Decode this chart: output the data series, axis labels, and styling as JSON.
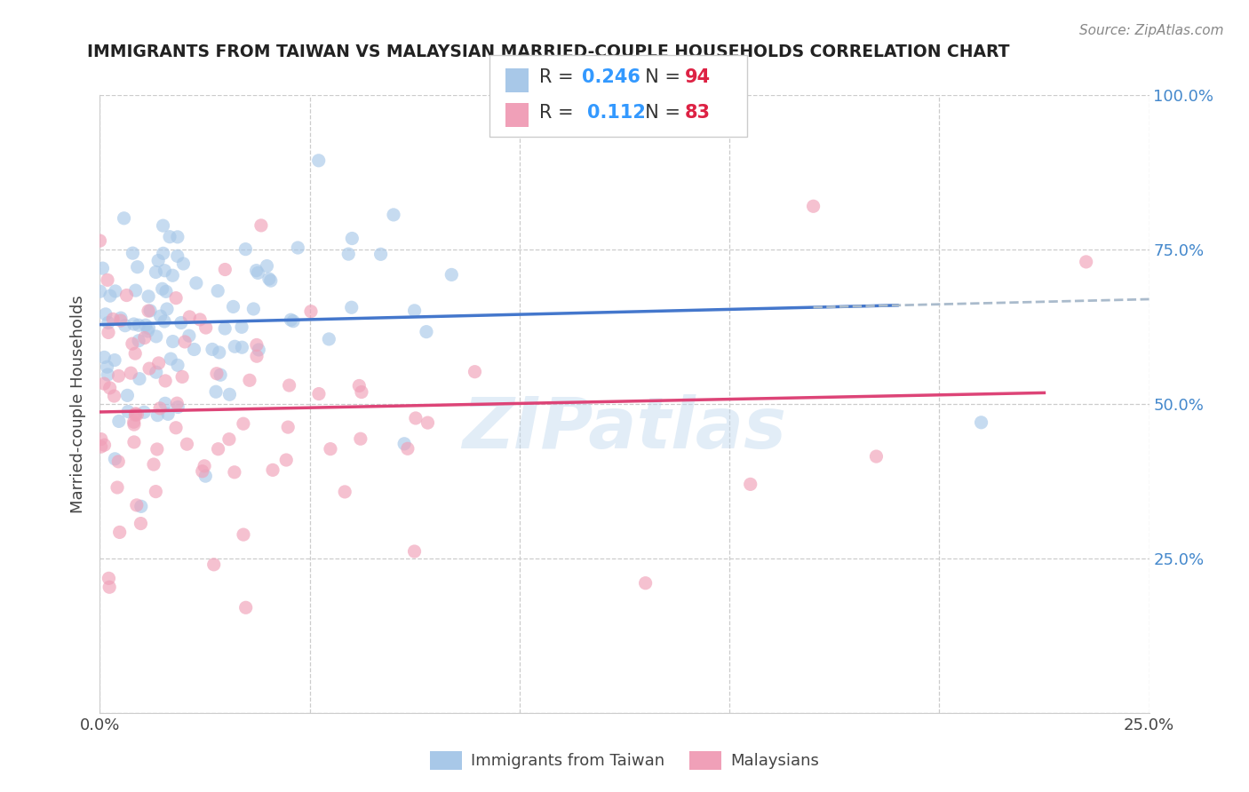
{
  "title": "IMMIGRANTS FROM TAIWAN VS MALAYSIAN MARRIED-COUPLE HOUSEHOLDS CORRELATION CHART",
  "source": "Source: ZipAtlas.com",
  "xlabel_blue": "Immigrants from Taiwan",
  "xlabel_pink": "Malaysians",
  "ylabel": "Married-couple Households",
  "xlim": [
    0.0,
    0.25
  ],
  "ylim": [
    0.0,
    1.0
  ],
  "xtick_vals": [
    0.0,
    0.05,
    0.1,
    0.15,
    0.2,
    0.25
  ],
  "ytick_vals": [
    0.0,
    0.25,
    0.5,
    0.75,
    1.0
  ],
  "ytick_labels_right": [
    "",
    "25.0%",
    "50.0%",
    "75.0%",
    "100.0%"
  ],
  "xtick_labels": [
    "0.0%",
    "",
    "",
    "",
    "",
    "25.0%"
  ],
  "blue_R": 0.246,
  "blue_N": 94,
  "pink_R": 0.112,
  "pink_N": 83,
  "blue_color": "#a8c8e8",
  "pink_color": "#f0a0b8",
  "trend_blue": "#4477cc",
  "trend_pink": "#dd4477",
  "dashed_color": "#aabbcc",
  "watermark": "ZIPatlas",
  "background_color": "#ffffff",
  "grid_color": "#cccccc",
  "title_color": "#222222",
  "ylabel_color": "#444444",
  "right_tick_color": "#4488cc",
  "legend_R_color": "#3399ff",
  "legend_N_color": "#dd2244",
  "title_fontsize": 13.5,
  "source_fontsize": 11,
  "tick_fontsize": 13,
  "ylabel_fontsize": 13
}
